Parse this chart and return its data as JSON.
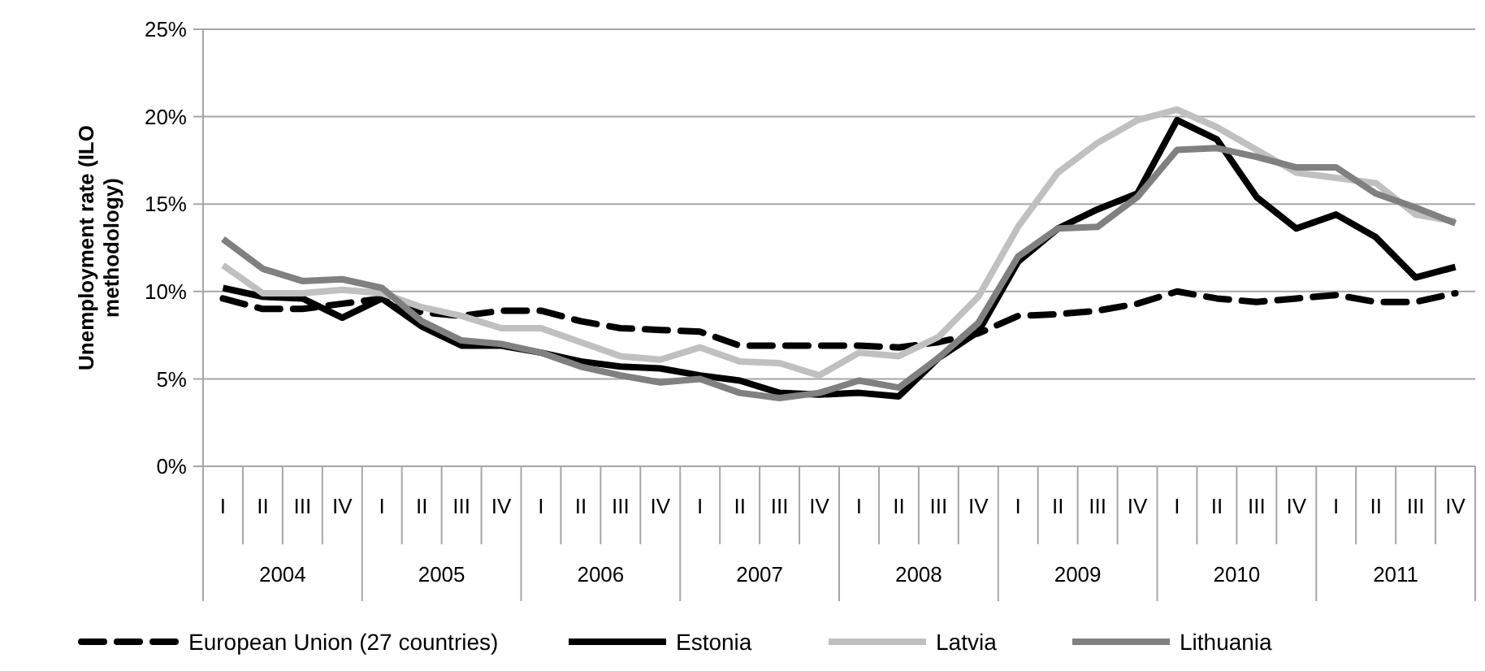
{
  "chart_data": {
    "type": "line",
    "ylabel": "Unemployment rate (ILO methodology)",
    "categories": [
      "I",
      "II",
      "III",
      "IV",
      "I",
      "II",
      "III",
      "IV",
      "I",
      "II",
      "III",
      "IV",
      "I",
      "II",
      "III",
      "IV",
      "I",
      "II",
      "III",
      "IV",
      "I",
      "II",
      "III",
      "IV",
      "I",
      "II",
      "III",
      "IV",
      "I",
      "II",
      "III",
      "IV"
    ],
    "annotations": [
      "2004",
      "2005",
      "2006",
      "2007",
      "2008",
      "2009",
      "2010",
      "2011"
    ],
    "series": [
      {
        "name": "European Union (27 countries)",
        "color": "#000000",
        "line_style": "dashed",
        "values": [
          9.6,
          9.0,
          9.0,
          9.3,
          9.6,
          8.8,
          8.6,
          8.9,
          8.9,
          8.3,
          7.9,
          7.8,
          7.7,
          6.9,
          6.9,
          6.9,
          6.9,
          6.8,
          7.1,
          7.6,
          8.6,
          8.7,
          8.9,
          9.3,
          10.0,
          9.6,
          9.4,
          9.6,
          9.8,
          9.4,
          9.4,
          9.9
        ]
      },
      {
        "name": "Estonia",
        "color": "#000000",
        "line_style": "solid",
        "values": [
          10.2,
          9.7,
          9.6,
          8.5,
          9.6,
          8.0,
          6.9,
          6.9,
          6.5,
          6.0,
          5.7,
          5.6,
          5.2,
          4.9,
          4.2,
          4.1,
          4.2,
          4.0,
          6.2,
          7.7,
          11.7,
          13.6,
          14.7,
          15.6,
          19.8,
          18.7,
          15.4,
          13.6,
          14.4,
          13.1,
          10.8,
          11.4
        ]
      },
      {
        "name": "Latvia",
        "color": "#c0c0c0",
        "line_style": "solid",
        "values": [
          11.5,
          9.9,
          9.9,
          10.1,
          9.9,
          9.1,
          8.6,
          7.9,
          7.9,
          7.1,
          6.3,
          6.1,
          6.8,
          6.0,
          5.9,
          5.2,
          6.5,
          6.3,
          7.4,
          9.7,
          13.7,
          16.8,
          18.5,
          19.8,
          20.4,
          19.4,
          18.1,
          16.8,
          16.5,
          16.2,
          14.4,
          14.0
        ]
      },
      {
        "name": "Lithuania",
        "color": "#808080",
        "line_style": "solid",
        "values": [
          13.0,
          11.3,
          10.6,
          10.7,
          10.2,
          8.3,
          7.2,
          7.0,
          6.5,
          5.7,
          5.2,
          4.8,
          5.0,
          4.2,
          3.9,
          4.2,
          4.9,
          4.5,
          6.2,
          8.2,
          12.0,
          13.6,
          13.7,
          15.4,
          18.1,
          18.2,
          17.7,
          17.1,
          17.1,
          15.6,
          14.8,
          13.9
        ]
      }
    ],
    "ylim": [
      0,
      25
    ],
    "yticks": [
      {
        "value": 0,
        "label": "0%"
      },
      {
        "value": 5,
        "label": "5%"
      },
      {
        "value": 10,
        "label": "10%"
      },
      {
        "value": 15,
        "label": "15%"
      },
      {
        "value": 20,
        "label": "20%"
      },
      {
        "value": 25,
        "label": "25%"
      }
    ],
    "grid": "y",
    "legend": "bottom"
  }
}
